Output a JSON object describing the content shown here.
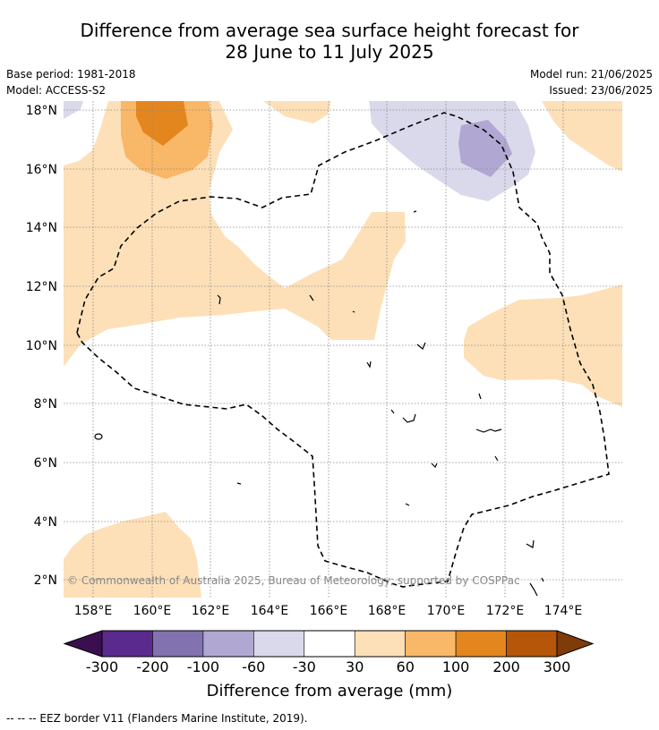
{
  "title": {
    "line1": "Difference from average sea surface height forecast for",
    "line2": "28 June to 11 July 2025"
  },
  "meta": {
    "base_period": "Base period: 1981-2018",
    "model": "Model: ACCESS-S2",
    "model_run": "Model run: 21/06/2025",
    "issued": "Issued: 23/06/2025"
  },
  "map": {
    "lat_ticks": [
      "18°N",
      "16°N",
      "14°N",
      "12°N",
      "10°N",
      "8°N",
      "6°N",
      "4°N",
      "2°N"
    ],
    "lon_ticks": [
      "158°E",
      "160°E",
      "162°E",
      "164°E",
      "166°E",
      "168°E",
      "170°E",
      "172°E",
      "174°E"
    ],
    "copyright": "© Commonwealth of Australia 2025, Bureau of Meteorology; supported by COSPPac",
    "lat_range": [
      1.4,
      18.3
    ],
    "lon_range": [
      157.0,
      175.0
    ]
  },
  "colorbar": {
    "title": "Difference from average (mm)",
    "labels": [
      "-300",
      "-200",
      "-100",
      "-60",
      "-30",
      "30",
      "60",
      "100",
      "200",
      "300"
    ],
    "colors": [
      "#3b0f4f",
      "#5b2a8e",
      "#8272b0",
      "#b0a8d2",
      "#d9d9eb",
      "#ffffff",
      "#fde0b8",
      "#f9b768",
      "#e4861e",
      "#b55609",
      "#7f3b08"
    ]
  },
  "footnote": "--  --  -- EEZ border V11 (Flanders Marine Institute, 2019)."
}
